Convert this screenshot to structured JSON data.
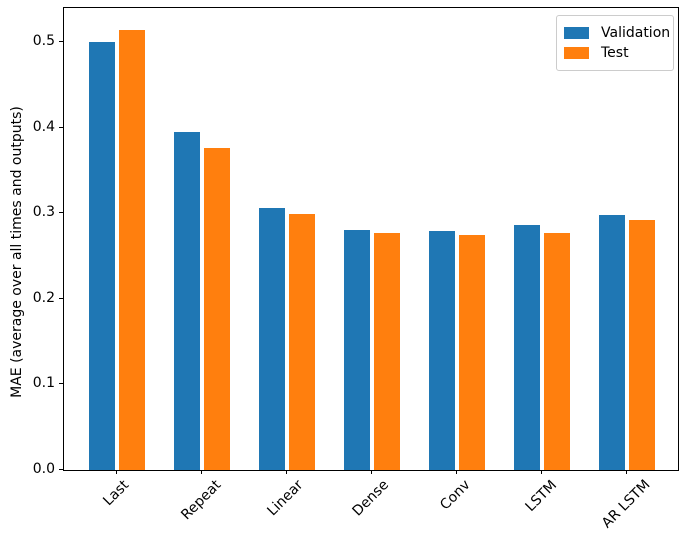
{
  "chart_data": {
    "type": "bar",
    "title": "",
    "xlabel": "",
    "ylabel": "MAE (average over all times and outputs)",
    "categories": [
      "Last",
      "Repeat",
      "Linear",
      "Dense",
      "Conv",
      "LSTM",
      "AR LSTM"
    ],
    "series": [
      {
        "name": "Validation",
        "color": "#1f77b4",
        "values": [
          0.501,
          0.395,
          0.306,
          0.281,
          0.28,
          0.286,
          0.298
        ]
      },
      {
        "name": "Test",
        "color": "#ff7f0e",
        "values": [
          0.515,
          0.377,
          0.299,
          0.277,
          0.275,
          0.277,
          0.292
        ]
      }
    ],
    "y_ticks": [
      0.0,
      0.1,
      0.2,
      0.3,
      0.4,
      0.5
    ],
    "ylim": [
      0,
      0.541
    ],
    "x_tick_rotation_deg": 45,
    "grid": false,
    "legend_position": "upper right",
    "axis_color": "#000000",
    "background_color": "#ffffff"
  }
}
